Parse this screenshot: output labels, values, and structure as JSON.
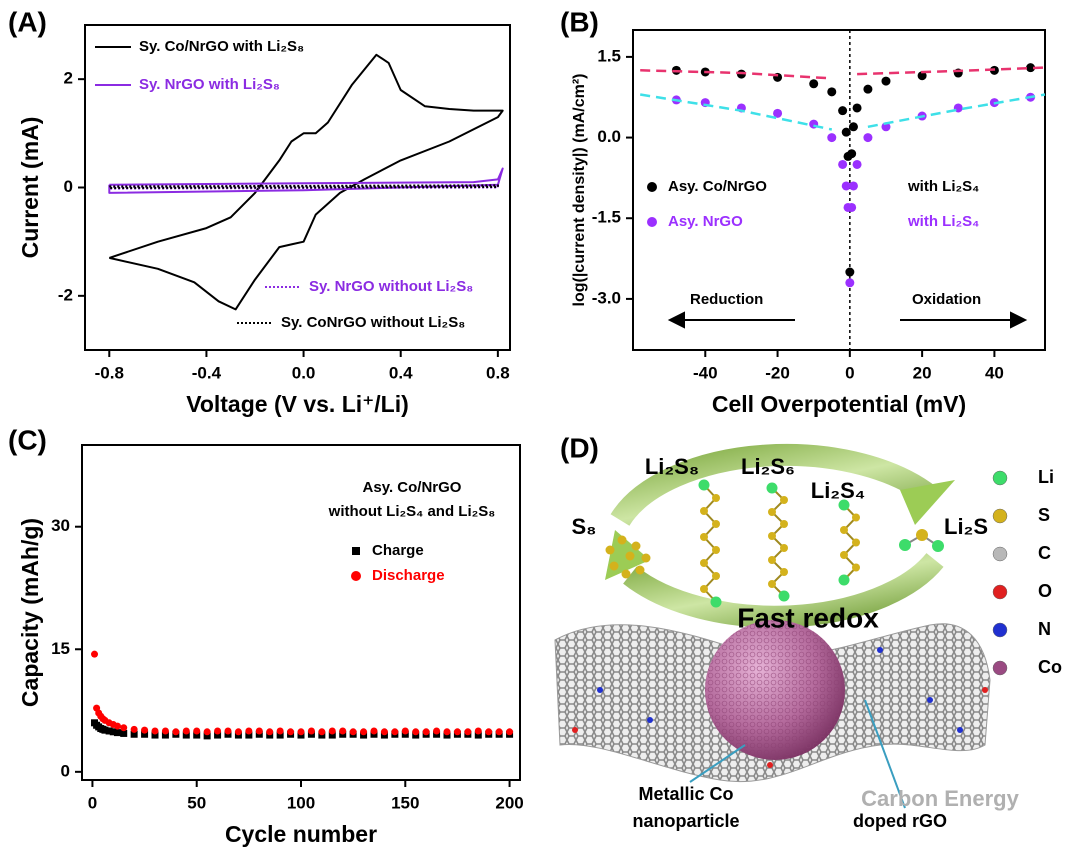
{
  "chart_data": [
    {
      "type": "line",
      "panel_label": "(A)",
      "x_label": "Voltage (V vs. Li⁺/Li)",
      "y_label": "Current (mA)",
      "xlim": [
        -0.9,
        0.85
      ],
      "ylim": [
        -3,
        3
      ],
      "xticks": [
        -0.8,
        -0.4,
        {
          "value": 0,
          "label": "0.0"
        },
        0.4,
        0.8
      ],
      "yticks": [
        -2,
        0,
        2
      ],
      "series": [
        {
          "name": "Sy. Co/NrGO with Li₂S₈",
          "color": "#000000",
          "style": "solid",
          "x": [
            -0.8,
            -0.6,
            -0.4,
            -0.3,
            -0.2,
            -0.1,
            -0.05,
            0.0,
            0.05,
            0.1,
            0.2,
            0.3,
            0.35,
            0.4,
            0.5,
            0.6,
            0.7,
            0.82,
            0.8,
            0.6,
            0.4,
            0.25,
            0.15,
            0.05,
            0.0,
            -0.05,
            -0.1,
            -0.2,
            -0.28,
            -0.35,
            -0.45,
            -0.6,
            -0.8
          ],
          "values": [
            -1.3,
            -1.0,
            -0.75,
            -0.55,
            -0.1,
            0.5,
            0.85,
            1.0,
            1.0,
            1.2,
            1.9,
            2.45,
            2.3,
            1.8,
            1.5,
            1.45,
            1.42,
            1.42,
            1.3,
            0.85,
            0.5,
            0.15,
            -0.1,
            -0.5,
            -1.0,
            -1.05,
            -1.1,
            -1.7,
            -2.25,
            -2.1,
            -1.75,
            -1.5,
            -1.3
          ]
        },
        {
          "name": "Sy. NrGO with Li₂S₈",
          "color": "#8b2be2",
          "style": "solid",
          "x": [
            -0.8,
            0.0,
            0.7,
            0.8,
            0.82,
            0.8,
            0.0,
            -0.8,
            -0.8
          ],
          "values": [
            0.05,
            0.08,
            0.1,
            0.15,
            0.35,
            0.05,
            -0.05,
            -0.1,
            0.05
          ]
        },
        {
          "name": "Sy. NrGO without Li₂S₈",
          "color": "#8b2be2",
          "style": "dotted",
          "x": [
            -0.8,
            0.8,
            0.8,
            -0.8
          ],
          "values": [
            0.01,
            0.03,
            0.0,
            -0.02
          ]
        },
        {
          "name": "Sy. CoNrGO  without Li₂S₈",
          "color": "#000000",
          "style": "dotted",
          "x": [
            -0.8,
            0.8,
            0.8,
            -0.8
          ],
          "values": [
            0.02,
            0.04,
            0.01,
            -0.01
          ]
        }
      ],
      "annotations": []
    },
    {
      "type": "scatter",
      "panel_label": "(B)",
      "x_label": "Cell Overpotential (mV)",
      "y_label": "log(|current density|) (mA/cm²)",
      "xlim": [
        -60,
        54
      ],
      "ylim": [
        -3.95,
        2
      ],
      "xticks": [
        -40,
        -20,
        0,
        20,
        40
      ],
      "yticks": [
        {
          "value": -3,
          "label": "-3.0"
        },
        -1.5,
        {
          "value": 0,
          "label": "0.0"
        },
        1.5
      ],
      "vline": 0,
      "series": [
        {
          "name": "Asy. Co/NrGO",
          "color": "#000000",
          "style": "markers",
          "x": [
            -48,
            -40,
            -30,
            -20,
            -10,
            -5,
            -2,
            -1,
            -0.5,
            0,
            0.5,
            1,
            2,
            5,
            10,
            20,
            30,
            40,
            50
          ],
          "values": [
            1.25,
            1.22,
            1.18,
            1.12,
            1.0,
            0.85,
            0.5,
            0.1,
            -0.35,
            -2.5,
            -0.3,
            0.2,
            0.55,
            0.9,
            1.05,
            1.15,
            1.2,
            1.25,
            1.3
          ]
        },
        {
          "name": "Asy. NrGO",
          "color": "#9b30ff",
          "style": "markers",
          "x": [
            -48,
            -40,
            -30,
            -20,
            -10,
            -5,
            -2,
            -1,
            -0.5,
            0,
            0.5,
            1,
            2,
            5,
            10,
            20,
            30,
            40,
            50
          ],
          "values": [
            0.7,
            0.65,
            0.55,
            0.45,
            0.25,
            0.0,
            -0.5,
            -0.9,
            -1.3,
            -2.7,
            -1.3,
            -0.9,
            -0.5,
            0.0,
            0.2,
            0.4,
            0.55,
            0.65,
            0.75
          ]
        },
        {
          "color": "#e8336e",
          "style": "dashed",
          "x": [
            -58,
            -30,
            -5,
            null,
            2,
            30,
            54
          ],
          "values": [
            1.25,
            1.2,
            1.1,
            null,
            1.18,
            1.24,
            1.3
          ]
        },
        {
          "color": "#3ee0e8",
          "style": "dashed",
          "x": [
            -58,
            -30,
            -5,
            null,
            5,
            30,
            54
          ],
          "values": [
            0.8,
            0.5,
            0.15,
            null,
            0.2,
            0.52,
            0.8
          ]
        }
      ],
      "annotations": [
        {
          "text": "with Li₂S₄",
          "color": "#000000"
        },
        {
          "text": "with Li₂S₄",
          "color": "#9b30ff"
        },
        {
          "text": "Reduction",
          "color": "#000000"
        },
        {
          "text": "Oxidation",
          "color": "#000000"
        }
      ]
    },
    {
      "type": "scatter",
      "panel_label": "(C)",
      "x_label": "Cycle number",
      "y_label": "Capacity (mAh/g)",
      "xlim": [
        -5,
        205
      ],
      "ylim": [
        -1,
        40
      ],
      "xticks": [
        0,
        50,
        100,
        150,
        200
      ],
      "yticks": [
        0,
        15,
        30
      ],
      "series": [
        {
          "name": "Charge",
          "color": "#000000",
          "style": "markers",
          "marker": "square",
          "x": [
            1,
            2,
            3,
            4,
            5,
            6,
            8,
            10,
            12,
            15,
            20,
            25,
            30,
            35,
            40,
            45,
            50,
            55,
            60,
            65,
            70,
            75,
            80,
            85,
            90,
            95,
            100,
            105,
            110,
            115,
            120,
            125,
            130,
            135,
            140,
            145,
            150,
            155,
            160,
            165,
            170,
            175,
            180,
            185,
            190,
            195,
            200
          ],
          "values": [
            6.0,
            5.7,
            5.5,
            5.3,
            5.2,
            5.1,
            5.0,
            4.9,
            4.8,
            4.7,
            4.6,
            4.6,
            4.5,
            4.5,
            4.6,
            4.5,
            4.5,
            4.4,
            4.5,
            4.6,
            4.5,
            4.5,
            4.6,
            4.5,
            4.5,
            4.6,
            4.5,
            4.6,
            4.5,
            4.5,
            4.6,
            4.6,
            4.5,
            4.6,
            4.5,
            4.6,
            4.6,
            4.5,
            4.6,
            4.6,
            4.5,
            4.6,
            4.6,
            4.5,
            4.6,
            4.6,
            4.6
          ]
        },
        {
          "name": "Discharge",
          "color": "#ff0000",
          "style": "markers",
          "marker": "circle",
          "x": [
            1,
            2,
            3,
            4,
            5,
            6,
            8,
            10,
            12,
            15,
            20,
            25,
            30,
            35,
            40,
            45,
            50,
            55,
            60,
            65,
            70,
            75,
            80,
            85,
            90,
            95,
            100,
            105,
            110,
            115,
            120,
            125,
            130,
            135,
            140,
            145,
            150,
            155,
            160,
            165,
            170,
            175,
            180,
            185,
            190,
            195,
            200
          ],
          "values": [
            14.4,
            7.8,
            7.2,
            6.8,
            6.5,
            6.3,
            6.0,
            5.8,
            5.6,
            5.4,
            5.2,
            5.1,
            5.0,
            5.0,
            4.9,
            5.0,
            5.0,
            4.9,
            5.0,
            5.0,
            4.9,
            5.0,
            5.0,
            4.9,
            5.0,
            4.9,
            4.9,
            5.0,
            4.9,
            5.0,
            5.0,
            4.9,
            4.9,
            5.0,
            4.9,
            4.9,
            5.0,
            4.9,
            4.9,
            5.0,
            4.9,
            4.9,
            4.9,
            5.0,
            4.9,
            4.9,
            4.9
          ]
        }
      ],
      "annotations": [
        {
          "text": "Asy. Co/NrGO",
          "color": "#000000"
        },
        {
          "text": "without Li₂S₄ and Li₂S₈",
          "color": "#000000"
        }
      ]
    }
  ],
  "diagram": {
    "panel_label": "(D)",
    "species": [
      "Li₂S₈",
      "Li₂S₆",
      "Li₂S₄"
    ],
    "reactant": "S₈",
    "product": "Li₂S",
    "process": "Fast redox",
    "particle_label": [
      "Metallic Co",
      "nanoparticle"
    ],
    "support_label": "doped rGO",
    "legend": [
      {
        "name": "Li",
        "color": "#3ddc6a"
      },
      {
        "name": "S",
        "color": "#d4b21c"
      },
      {
        "name": "C",
        "color": "#b8b8b8"
      },
      {
        "name": "O",
        "color": "#e02020"
      },
      {
        "name": "N",
        "color": "#2030d0"
      },
      {
        "name": "Co",
        "color": "#9a4a82"
      }
    ],
    "watermark": "Carbon Energy"
  }
}
